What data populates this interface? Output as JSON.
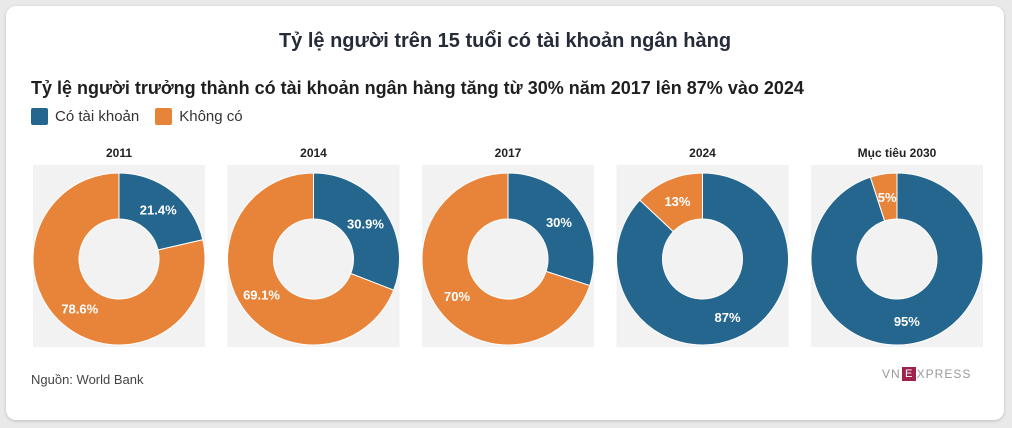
{
  "header": {
    "title": "Tỷ lệ người trên 15 tuổi có tài khoản ngân hàng"
  },
  "colors": {
    "has_account": "#25668f",
    "no_account": "#e8843a",
    "panel_bg": "#f2f2f2"
  },
  "legend": {
    "items": [
      {
        "label": "Có tài khoản",
        "color": "#25668f"
      },
      {
        "label": "Không có",
        "color": "#e8843a"
      }
    ]
  },
  "footer": {
    "source": "Nguồn: World Bank"
  },
  "logo": {
    "text_left": "VN",
    "text_box": "E",
    "text_right": "XPRESS"
  },
  "chart_data": {
    "type": "pie",
    "variant": "donut",
    "title": "Tỷ lệ người trưởng thành có tài khoản ngân hàng tăng từ 30% năm 2017 lên 87% vào 2024",
    "series_names": [
      "Có tài khoản",
      "Không có"
    ],
    "panels": [
      {
        "title": "2011",
        "slices": [
          {
            "name": "Có tài khoản",
            "value": 21.4,
            "label": "21.4%"
          },
          {
            "name": "Không có",
            "value": 78.6,
            "label": "78.6%"
          }
        ]
      },
      {
        "title": "2014",
        "slices": [
          {
            "name": "Có tài khoản",
            "value": 30.9,
            "label": "30.9%"
          },
          {
            "name": "Không có",
            "value": 69.1,
            "label": "69.1%"
          }
        ]
      },
      {
        "title": "2017",
        "slices": [
          {
            "name": "Có tài khoản",
            "value": 30,
            "label": "30%"
          },
          {
            "name": "Không có",
            "value": 70,
            "label": "70%"
          }
        ]
      },
      {
        "title": "2024",
        "slices": [
          {
            "name": "Có tài khoản",
            "value": 87,
            "label": "87%"
          },
          {
            "name": "Không có",
            "value": 13,
            "label": "13%"
          }
        ]
      },
      {
        "title": "Mục tiêu 2030",
        "slices": [
          {
            "name": "Có tài khoản",
            "value": 95,
            "label": "95%"
          },
          {
            "name": "Không có",
            "value": 5,
            "label": "5%"
          }
        ]
      }
    ],
    "legend_position": "top-left"
  }
}
